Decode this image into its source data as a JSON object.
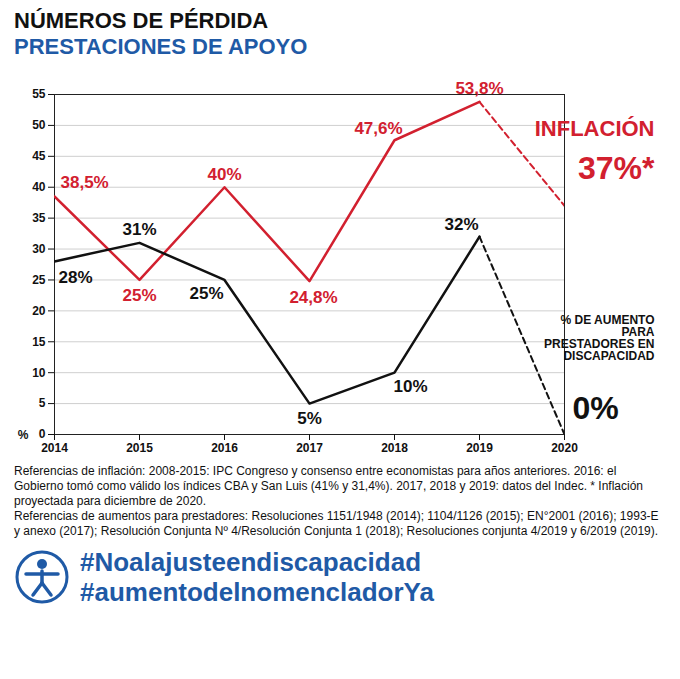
{
  "chart_data": {
    "type": "line",
    "title": "NÚMEROS DE PÉRDIDA",
    "subtitle": "PRESTACIONES DE APOYO",
    "y_label": "%",
    "x": [
      2014,
      2015,
      2016,
      2017,
      2018,
      2019,
      2020
    ],
    "xlim": [
      2014,
      2020
    ],
    "xticks": [
      2014,
      2015,
      2016,
      2017,
      2018,
      2019,
      2020
    ],
    "ylim": [
      0,
      55
    ],
    "yticks": [
      0,
      5,
      10,
      15,
      20,
      25,
      30,
      35,
      40,
      45,
      50,
      55
    ],
    "grid": true,
    "data_labels": true,
    "series": [
      {
        "name": "INFLACIÓN",
        "color": "#d2202f",
        "values": [
          38.5,
          25,
          40,
          24.8,
          47.6,
          53.8,
          37
        ],
        "value_labels": [
          "38,5%",
          "25%",
          "40%",
          "24,8%",
          "47,6%",
          "53,8%",
          "37%*"
        ]
      },
      {
        "name": "% DE AUMENTO PARA PRESTADORES EN DISCAPACIDAD",
        "color": "#111111",
        "values": [
          28,
          31,
          25,
          5,
          10,
          32,
          0
        ],
        "value_labels": [
          "28%",
          "31%",
          "25%",
          "5%",
          "10%",
          "32%",
          "0%"
        ]
      }
    ],
    "notes": [
      "Referencias de inflación: 2008-2015: IPC Congreso y consenso entre economistas para años anteriores. 2016: el Gobierno tomó como válido los índices CBA y San Luis (41% y 31,4%). 2017, 2018 y 2019: datos del Indec. * Inflación proyectada para diciembre de 2020.",
      "Referencias de aumentos para prestadores: Resoluciones 1151/1948 (2014); 1104/1126 (2015); EN°2001 (2016); 1993-E y anexo (2017); Resolución Conjunta Nº 4/Resolución Conjunta 1 (2018); Resoluciones conjunta 4/2019 y 6/2019 (2019)."
    ],
    "hashtags": [
      "#Noalajusteendiscapacidad",
      "#aumentodelnomencladorYa"
    ]
  }
}
